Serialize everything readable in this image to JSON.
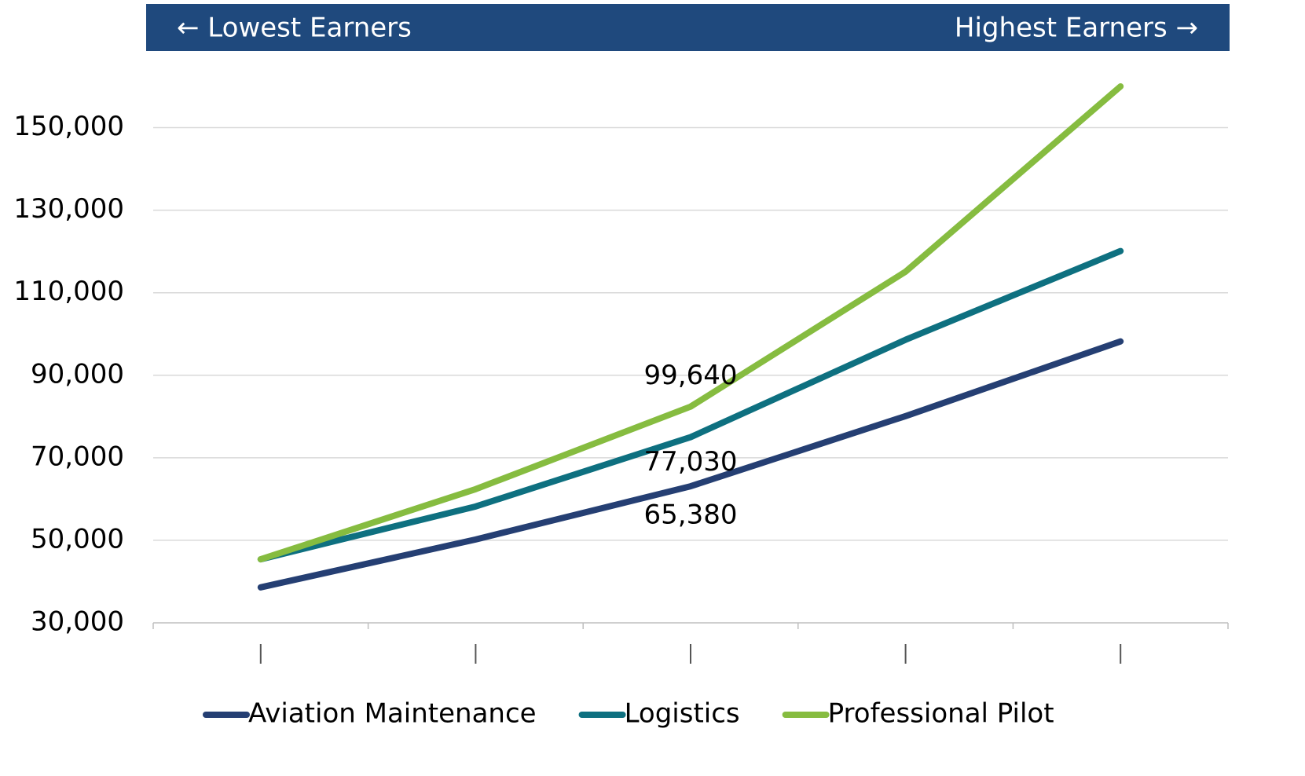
{
  "chart_data": {
    "type": "line",
    "header_left": "← Lowest Earners",
    "header_right": "Highest Earners →",
    "categories": [
      null,
      null,
      null,
      null,
      null
    ],
    "series": [
      {
        "name": "Aviation Maintenance",
        "color": "#253f73",
        "values": [
          38600,
          50200,
          63100,
          80100,
          98200
        ]
      },
      {
        "name": "Logistics",
        "color": "#0e7080",
        "values": [
          45400,
          58200,
          75000,
          98600,
          120100
        ]
      },
      {
        "name": "Professional Pilot",
        "color": "#86bc40",
        "values": [
          45400,
          62400,
          82400,
          115100,
          160000
        ]
      }
    ],
    "annotations": [
      "99,640",
      "77,030",
      "65,380"
    ],
    "ylim": [
      30000,
      160000
    ],
    "yticks": [
      {
        "value": 30000,
        "label": "30,000"
      },
      {
        "value": 50000,
        "label": "50,000"
      },
      {
        "value": 70000,
        "label": "70,000"
      },
      {
        "value": 90000,
        "label": "90,000"
      },
      {
        "value": 110000,
        "label": "110,000"
      },
      {
        "value": 130000,
        "label": "130,000"
      },
      {
        "value": 150000,
        "label": "150,000"
      }
    ],
    "grid": true,
    "legend": "bottom"
  }
}
